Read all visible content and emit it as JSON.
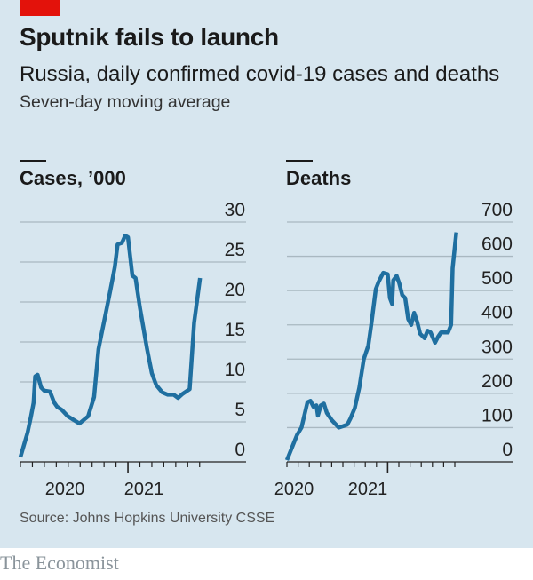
{
  "header": {
    "title": "Sputnik fails to launch",
    "subtitle": "Russia, daily confirmed covid-19 cases and deaths",
    "note": "Seven-day moving average"
  },
  "footer": {
    "source": "Source: Johns Hopkins University CSSE",
    "brand": "The Economist"
  },
  "colors": {
    "background": "#d7e6ef",
    "line": "#1f6fa0",
    "accent": "#e3120b"
  },
  "chart_data": [
    {
      "type": "line",
      "title": "Cases, ’000",
      "ylim": [
        0,
        30
      ],
      "yticks": [
        "0",
        "5",
        "10",
        "15",
        "20",
        "25",
        "30"
      ],
      "ytick_values": [
        0,
        5,
        10,
        15,
        20,
        25,
        30
      ],
      "xticks": [
        "2020",
        "2021"
      ],
      "grid": true,
      "x": [
        "2020-04-01",
        "2020-04-19",
        "2020-04-27",
        "2020-05-04",
        "2020-05-08",
        "2020-05-14",
        "2020-05-23",
        "2020-05-31",
        "2020-06-15",
        "2020-06-26",
        "2020-07-03",
        "2020-07-15",
        "2020-07-30",
        "2020-08-29",
        "2020-09-21",
        "2020-10-06",
        "2020-10-17",
        "2020-10-25",
        "2020-11-05",
        "2020-11-17",
        "2020-11-28",
        "2020-12-05",
        "2020-12-16",
        "2020-12-24",
        "2021-01-01",
        "2021-01-12",
        "2021-01-20",
        "2021-02-01",
        "2021-02-19",
        "2021-03-01",
        "2021-03-12",
        "2021-03-27",
        "2021-04-11",
        "2021-04-26",
        "2021-05-07",
        "2021-05-18",
        "2021-06-06",
        "2021-06-17",
        "2021-07-02"
      ],
      "values": [
        0.6,
        3.7,
        5.6,
        7.4,
        10.7,
        10.9,
        9.3,
        8.9,
        8.8,
        7.4,
        6.9,
        6.5,
        5.7,
        4.8,
        5.7,
        8.1,
        14.1,
        16.1,
        18.5,
        21.5,
        24.4,
        27.2,
        27.4,
        28.3,
        28.1,
        23.3,
        23.0,
        19.3,
        14.1,
        11.1,
        9.6,
        8.7,
        8.4,
        8.4,
        8.0,
        8.5,
        9.1,
        17.4,
        23.0
      ]
    },
    {
      "type": "line",
      "title": "Deaths",
      "ylim": [
        0,
        700
      ],
      "yticks": [
        "0",
        "100",
        "200",
        "300",
        "400",
        "500",
        "600",
        "700"
      ],
      "ytick_values": [
        0,
        100,
        200,
        300,
        400,
        500,
        600,
        700
      ],
      "xticks": [
        "2020",
        "2021"
      ],
      "grid": true,
      "x": [
        "2020-04-01",
        "2020-04-28",
        "2020-05-10",
        "2020-05-26",
        "2020-06-04",
        "2020-06-12",
        "2020-06-20",
        "2020-06-24",
        "2020-07-02",
        "2020-07-10",
        "2020-07-18",
        "2020-07-31",
        "2020-08-20",
        "2020-09-01",
        "2020-09-13",
        "2020-09-21",
        "2020-10-03",
        "2020-10-15",
        "2020-10-27",
        "2020-11-09",
        "2020-11-17",
        "2020-11-29",
        "2020-12-07",
        "2020-12-19",
        "2021-01-01",
        "2021-01-07",
        "2021-01-13",
        "2021-01-16",
        "2021-01-25",
        "2021-02-02",
        "2021-02-10",
        "2021-02-18",
        "2021-02-26",
        "2021-03-04",
        "2021-03-12",
        "2021-03-20",
        "2021-03-28",
        "2021-04-10",
        "2021-04-18",
        "2021-04-26",
        "2021-05-08",
        "2021-05-16",
        "2021-05-24",
        "2021-06-05",
        "2021-06-13",
        "2021-06-21",
        "2021-06-25",
        "2021-07-05"
      ],
      "values": [
        5,
        78,
        100,
        174,
        178,
        161,
        165,
        135,
        165,
        170,
        143,
        122,
        100,
        104,
        109,
        126,
        157,
        217,
        300,
        339,
        400,
        504,
        526,
        552,
        548,
        478,
        461,
        530,
        543,
        522,
        487,
        478,
        417,
        400,
        435,
        409,
        374,
        361,
        383,
        378,
        348,
        365,
        378,
        378,
        378,
        400,
        565,
        670
      ]
    }
  ]
}
